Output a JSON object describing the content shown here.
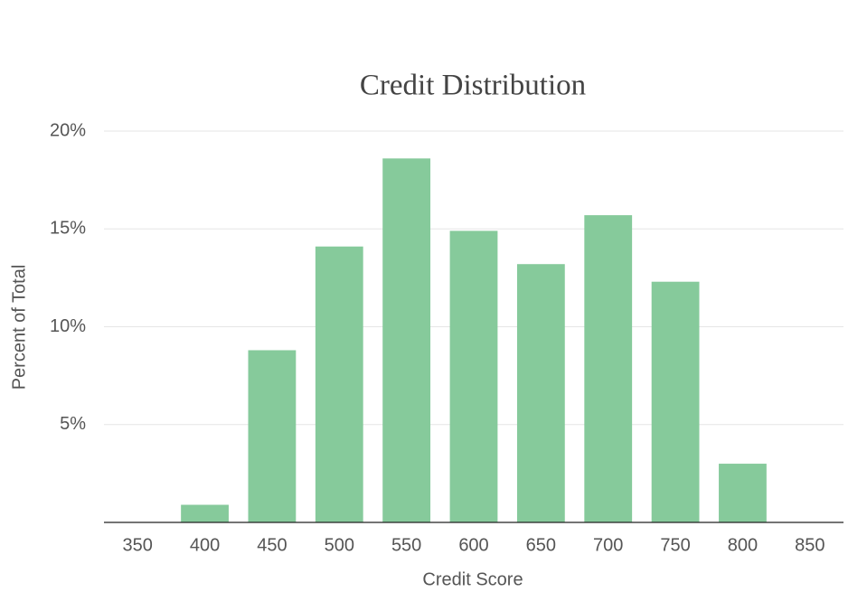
{
  "chart_data": {
    "type": "bar",
    "title": "Credit Distribution",
    "x_label": "Credit Score",
    "y_label": "Percent of Total",
    "categories": [
      "350",
      "400",
      "450",
      "500",
      "550",
      "600",
      "650",
      "700",
      "750",
      "800",
      "850"
    ],
    "values": [
      0,
      0.9,
      8.8,
      14.1,
      18.6,
      14.9,
      13.2,
      15.7,
      12.3,
      3.0,
      0
    ],
    "color": "#86ca9b",
    "ylim": [
      0,
      20
    ],
    "yticks": [
      {
        "value": 5,
        "label": "5%"
      },
      {
        "value": 10,
        "label": "10%"
      },
      {
        "value": 15,
        "label": "15%"
      },
      {
        "value": 20,
        "label": "20%"
      }
    ],
    "grid": true
  }
}
